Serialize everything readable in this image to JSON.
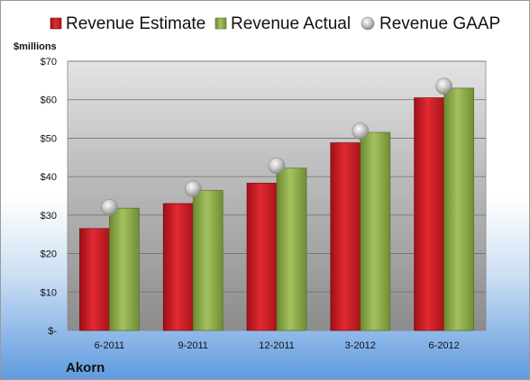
{
  "chart_data": {
    "type": "bar",
    "company": "Akorn",
    "unit_label": "$millions",
    "categories": [
      "6-2011",
      "9-2011",
      "12-2011",
      "3-2012",
      "6-2012"
    ],
    "series": [
      {
        "name": "Revenue Estimate",
        "kind": "bar",
        "color": "#d0202a",
        "values": [
          26.5,
          33.0,
          38.3,
          48.8,
          60.5
        ]
      },
      {
        "name": "Revenue Actual",
        "kind": "bar",
        "color": "#8fae4c",
        "values": [
          31.8,
          36.4,
          42.2,
          51.5,
          63.0
        ]
      },
      {
        "name": "Revenue GAAP",
        "kind": "marker",
        "color": "#b0b0b0",
        "values": [
          32.0,
          36.8,
          42.8,
          51.8,
          63.5
        ]
      }
    ],
    "y_ticks": [
      "$-",
      "$10",
      "$20",
      "$30",
      "$40",
      "$50",
      "$60",
      "$70"
    ],
    "ylim": [
      0,
      70
    ],
    "grid": true,
    "legend_position": "top"
  }
}
